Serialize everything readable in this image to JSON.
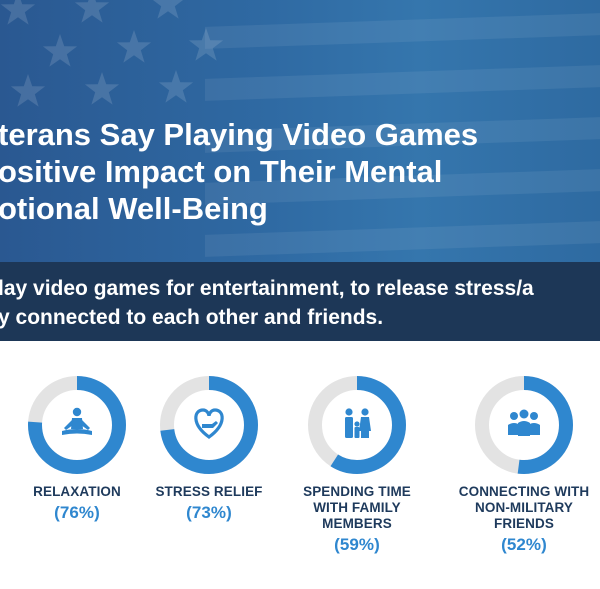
{
  "header": {
    "title_lines": [
      "terans Say Playing Video Games",
      "ositive Impact on Their Mental",
      "otional Well-Being"
    ],
    "subtitle_lines": [
      "lay video games for entertainment, to release stress/a",
      "y connected to each other and friends."
    ]
  },
  "colors": {
    "accent": "#2f87cf",
    "ring_track": "#e3e3e3",
    "navy_band": "#1d3757",
    "hero_blue": "#2f6aa3"
  },
  "chart_data": {
    "type": "pie",
    "categories": [
      "RELAXATION",
      "STRESS RELIEF",
      "SPENDING TIME WITH FAMILY MEMBERS",
      "CONNECTING WITH NON-MILITARY FRIENDS"
    ],
    "label_lines": [
      [
        "RELAXATION"
      ],
      [
        "STRESS RELIEF"
      ],
      [
        "SPENDING TIME",
        "WITH FAMILY",
        "MEMBERS"
      ],
      [
        "CONNECTING WITH",
        "NON-MILITARY",
        "FRIENDS"
      ]
    ],
    "values": [
      76,
      73,
      59,
      52
    ],
    "value_labels": [
      "(76%)",
      "(73%)",
      "(59%)",
      "(52%)"
    ],
    "icons": [
      "meditation-icon",
      "heart-hand-icon",
      "family-icon",
      "group-icon"
    ],
    "ylim": [
      0,
      100
    ]
  }
}
